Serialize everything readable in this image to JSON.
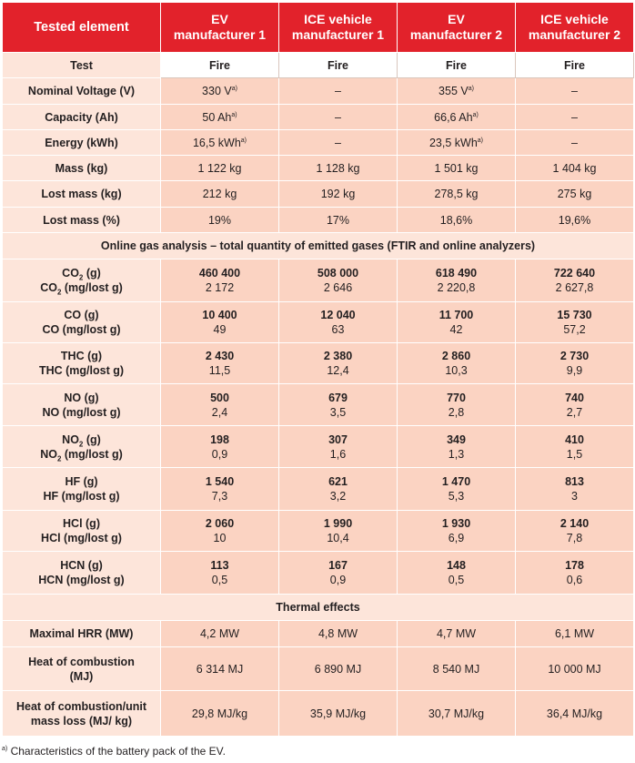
{
  "header": {
    "col0": "Tested element",
    "col1": [
      "EV",
      "manufacturer 1"
    ],
    "col2": [
      "ICE vehicle",
      "manufacturer 1"
    ],
    "col3": [
      "EV",
      "manufacturer 2"
    ],
    "col4": [
      "ICE vehicle",
      "manufacturer 2"
    ]
  },
  "basic_rows": [
    {
      "label": "Test",
      "values": [
        "Fire",
        "Fire",
        "Fire",
        "Fire"
      ]
    },
    {
      "label": "Nominal Voltage (V)",
      "values": [
        "330 V",
        "–",
        "355 V",
        "–"
      ],
      "note": [
        true,
        false,
        true,
        false
      ]
    },
    {
      "label": "Capacity (Ah)",
      "values": [
        "50 Ah",
        "–",
        "66,6 Ah",
        "–"
      ],
      "note": [
        true,
        false,
        true,
        false
      ]
    },
    {
      "label": "Energy (kWh)",
      "values": [
        "16,5 kWh",
        "–",
        "23,5 kWh",
        "–"
      ],
      "note": [
        true,
        false,
        true,
        false
      ]
    },
    {
      "label": "Mass (kg)",
      "values": [
        "1 122 kg",
        "1 128 kg",
        "1 501 kg",
        "1 404 kg"
      ]
    },
    {
      "label": "Lost mass (kg)",
      "values": [
        "212 kg",
        "192 kg",
        "278,5 kg",
        "275 kg"
      ]
    },
    {
      "label": "Lost mass (%)",
      "values": [
        "19%",
        "17%",
        "18,6%",
        "19,6%"
      ]
    }
  ],
  "note_marker": "a)",
  "section_gas": "Online gas analysis – total quantity of emitted gases (FTIR and online analyzers)",
  "gas_rows": [
    {
      "species": "CO",
      "sub": "2",
      "unit1": " (g)",
      "unit2": " (mg/lost g)",
      "totals": [
        "460 400",
        "508 000",
        "618 490",
        "722 640"
      ],
      "perloss": [
        "2 172",
        "2 646",
        "2 220,8",
        "2 627,8"
      ]
    },
    {
      "species": "CO",
      "sub": "",
      "unit1": " (g)",
      "unit2": " (mg/lost g)",
      "totals": [
        "10 400",
        "12 040",
        "11 700",
        "15  730"
      ],
      "perloss": [
        "49",
        "63",
        "42",
        "57,2"
      ]
    },
    {
      "species": "THC",
      "sub": "",
      "unit1": " (g)",
      "unit2": " (mg/lost g)",
      "totals": [
        "2 430",
        "2 380",
        "2 860",
        "2 730"
      ],
      "perloss": [
        "11,5",
        "12,4",
        "10,3",
        "9,9"
      ]
    },
    {
      "species": "NO",
      "sub": "",
      "unit1": " (g)",
      "unit2": " (mg/lost g)",
      "totals": [
        "500",
        "679",
        "770",
        "740"
      ],
      "perloss": [
        "2,4",
        "3,5",
        "2,8",
        "2,7"
      ]
    },
    {
      "species": "NO",
      "sub": "2",
      "unit1": " (g)",
      "unit2": " (mg/lost g)",
      "totals": [
        "198",
        "307",
        "349",
        "410"
      ],
      "perloss": [
        "0,9",
        "1,6",
        "1,3",
        "1,5"
      ]
    },
    {
      "species": "HF",
      "sub": "",
      "unit1": " (g)",
      "unit2": " (mg/lost g)",
      "totals": [
        "1 540",
        "621",
        "1 470",
        "813"
      ],
      "perloss": [
        "7,3",
        "3,2",
        "5,3",
        "3"
      ]
    },
    {
      "species": "HCl",
      "sub": "",
      "unit1": " (g)",
      "unit2": " (mg/lost g)",
      "totals": [
        "2 060",
        "1 990",
        "1 930",
        "2 140"
      ],
      "perloss": [
        "10",
        "10,4",
        "6,9",
        "7,8"
      ]
    },
    {
      "species": "HCN",
      "sub": "",
      "unit1": " (g)",
      "unit2": " (mg/lost g)",
      "totals": [
        "113",
        "167",
        "148",
        "178"
      ],
      "perloss": [
        "0,5",
        "0,9",
        "0,5",
        "0,6"
      ]
    }
  ],
  "section_thermal": "Thermal effects",
  "thermal_rows": [
    {
      "label": [
        "Maximal HRR (MW)"
      ],
      "values": [
        "4,2 MW",
        "4,8 MW",
        "4,7 MW",
        "6,1 MW"
      ]
    },
    {
      "label": [
        "Heat of combustion",
        "(MJ)"
      ],
      "values": [
        "6 314 MJ",
        "6 890 MJ",
        "8 540 MJ",
        "10 000 MJ"
      ]
    },
    {
      "label": [
        "Heat of combustion/unit",
        "mass loss (MJ/ kg)"
      ],
      "values": [
        "29,8 MJ/kg",
        "35,9 MJ/kg",
        "30,7 MJ/kg",
        "36,4 MJ/kg"
      ]
    }
  ],
  "footnote": {
    "marker": "a)",
    "text": " Characteristics of the battery pack of the EV."
  },
  "colors": {
    "header_red": "#e2222b",
    "cell_dark": "#fbd3c2",
    "cell_light": "#fde5da"
  }
}
